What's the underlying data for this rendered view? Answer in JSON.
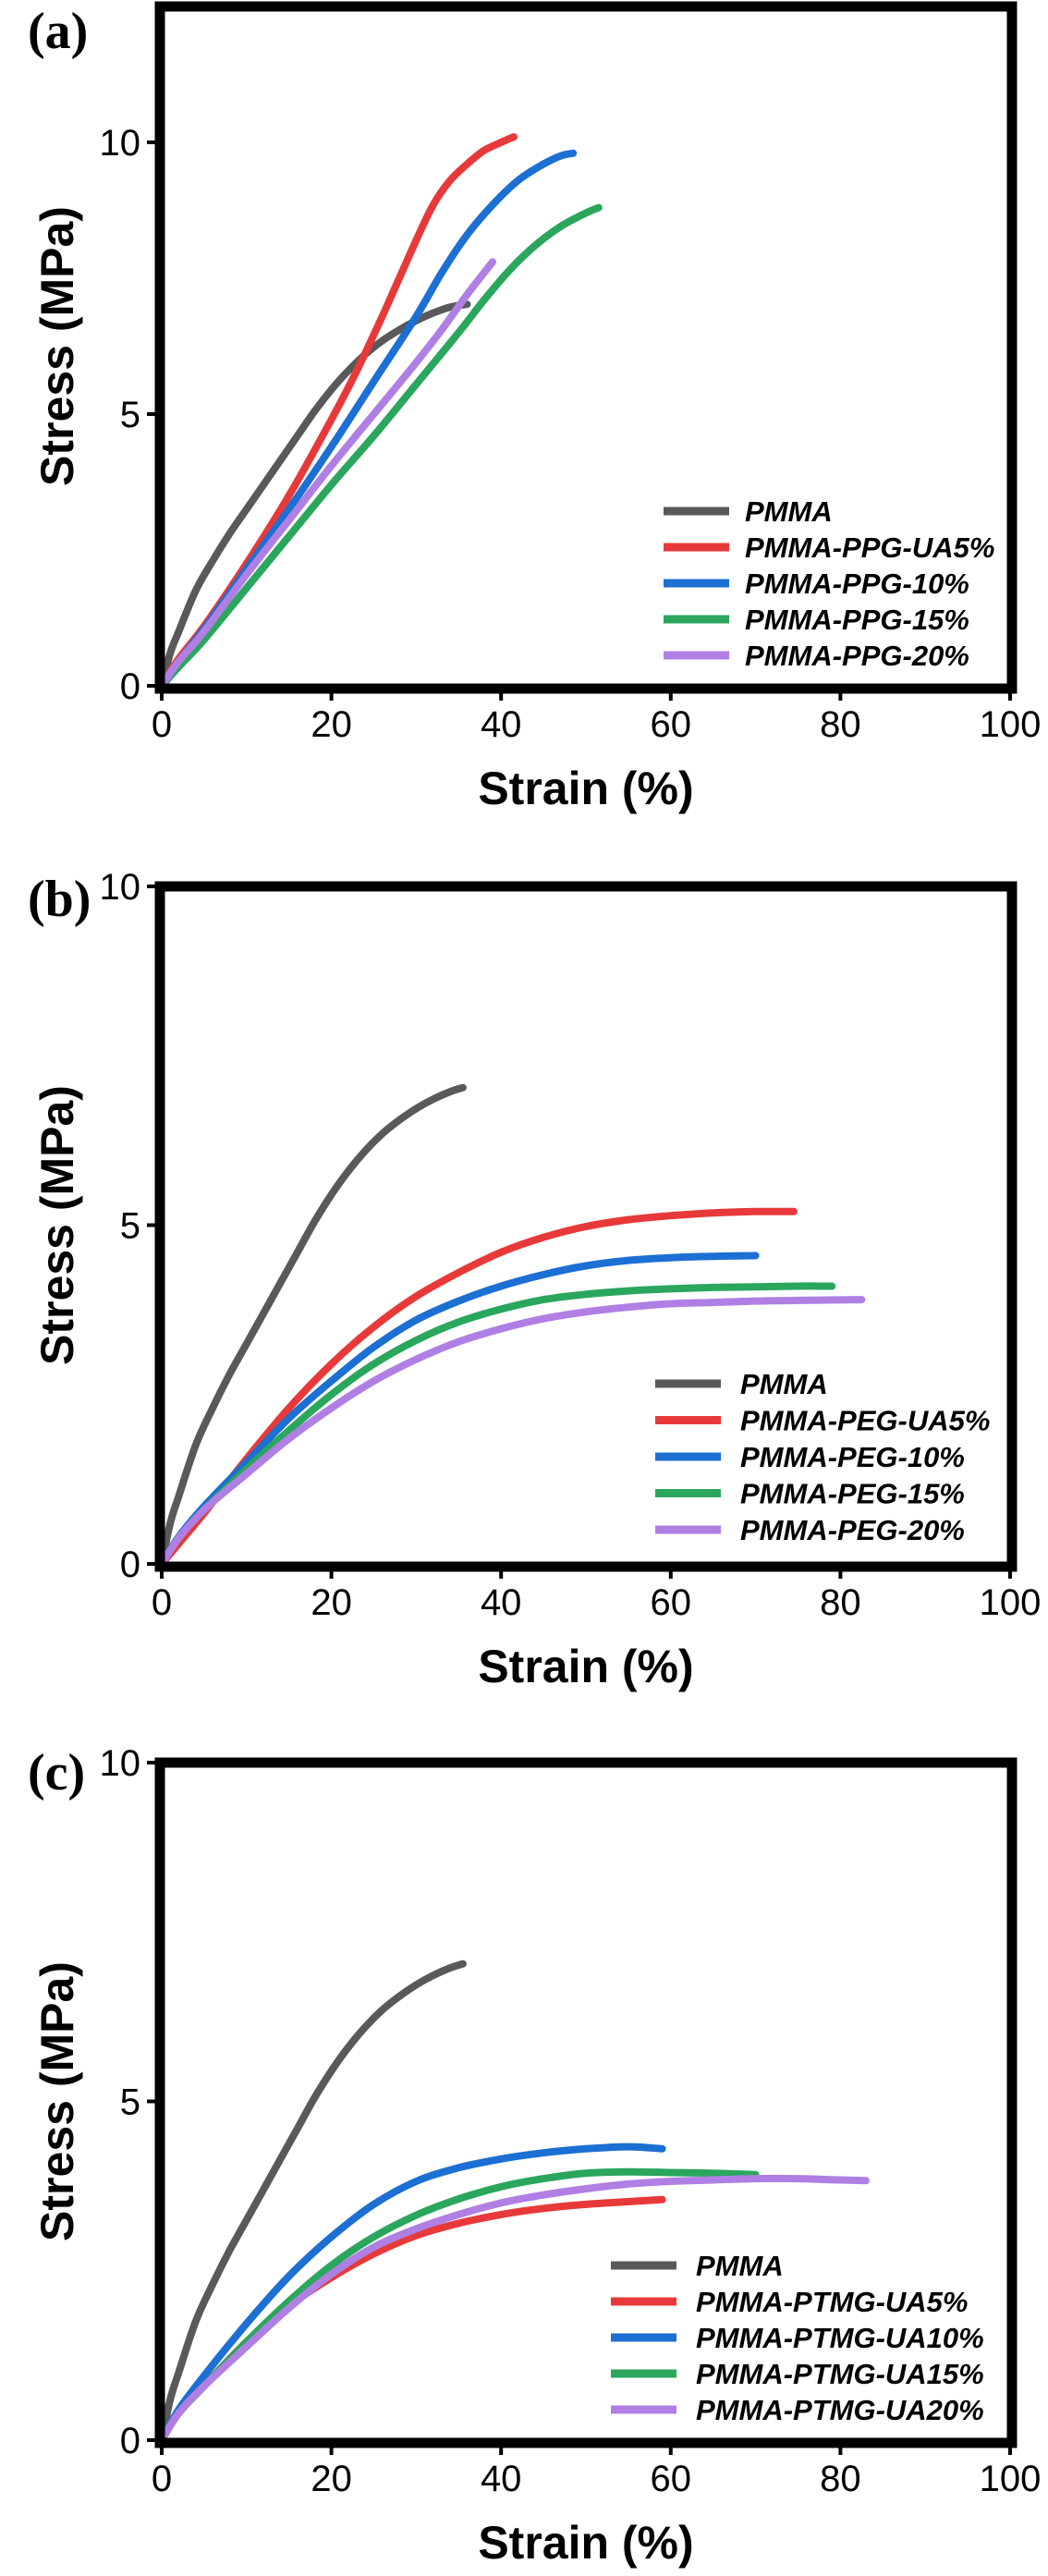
{
  "chart_data": [
    {
      "type": "line",
      "panel_label": "(a)",
      "xlabel": "Strain (%)",
      "ylabel": "Stress (MPa)",
      "xlim": [
        0,
        100
      ],
      "ylim": [
        0,
        12.5
      ],
      "xticks": [
        0,
        20,
        40,
        60,
        80,
        100
      ],
      "yticks": [
        0,
        5,
        10
      ],
      "grid": false,
      "legend": "lower-right",
      "series": [
        {
          "name": "PMMA",
          "color": "#595959",
          "points": [
            [
              0,
              0
            ],
            [
              1,
              0.6
            ],
            [
              2,
              1.0
            ],
            [
              4,
              1.75
            ],
            [
              6,
              2.3
            ],
            [
              8,
              2.8
            ],
            [
              10,
              3.25
            ],
            [
              12,
              3.7
            ],
            [
              14,
              4.15
            ],
            [
              16,
              4.6
            ],
            [
              18,
              5.05
            ],
            [
              20,
              5.45
            ],
            [
              22,
              5.8
            ],
            [
              24,
              6.1
            ],
            [
              26,
              6.35
            ],
            [
              28,
              6.55
            ],
            [
              30,
              6.72
            ],
            [
              32,
              6.86
            ],
            [
              34,
              6.97
            ],
            [
              36,
              7.02
            ]
          ]
        },
        {
          "name": "PMMA-PPG-UA5%",
          "color": "#e8393a",
          "points": [
            [
              0,
              0
            ],
            [
              2,
              0.5
            ],
            [
              5,
              1.1
            ],
            [
              10,
              2.25
            ],
            [
              15,
              3.5
            ],
            [
              20,
              4.9
            ],
            [
              23,
              5.8
            ],
            [
              26,
              6.8
            ],
            [
              28,
              7.5
            ],
            [
              30,
              8.2
            ],
            [
              32,
              8.85
            ],
            [
              34,
              9.3
            ],
            [
              36,
              9.6
            ],
            [
              38,
              9.85
            ],
            [
              40,
              10.0
            ],
            [
              41.5,
              10.1
            ]
          ]
        },
        {
          "name": "PMMA-PPG-10%",
          "color": "#1c6fd3",
          "points": [
            [
              0,
              0
            ],
            [
              2,
              0.45
            ],
            [
              5,
              1.05
            ],
            [
              10,
              2.15
            ],
            [
              15,
              3.25
            ],
            [
              20,
              4.4
            ],
            [
              25,
              5.6
            ],
            [
              30,
              6.8
            ],
            [
              33,
              7.6
            ],
            [
              36,
              8.3
            ],
            [
              39,
              8.85
            ],
            [
              42,
              9.3
            ],
            [
              45,
              9.6
            ],
            [
              47,
              9.75
            ],
            [
              48.5,
              9.8
            ]
          ]
        },
        {
          "name": "PMMA-PPG-15%",
          "color": "#2aa65d",
          "points": [
            [
              0,
              0
            ],
            [
              2,
              0.35
            ],
            [
              5,
              0.85
            ],
            [
              10,
              1.8
            ],
            [
              15,
              2.75
            ],
            [
              20,
              3.7
            ],
            [
              25,
              4.6
            ],
            [
              30,
              5.55
            ],
            [
              35,
              6.5
            ],
            [
              38,
              7.1
            ],
            [
              41,
              7.65
            ],
            [
              44,
              8.1
            ],
            [
              47,
              8.45
            ],
            [
              50,
              8.7
            ],
            [
              51.5,
              8.8
            ]
          ]
        },
        {
          "name": "PMMA-PPG-20%",
          "color": "#b07fe3",
          "points": [
            [
              0,
              0
            ],
            [
              2,
              0.45
            ],
            [
              5,
              1.0
            ],
            [
              10,
              2.05
            ],
            [
              15,
              3.05
            ],
            [
              20,
              4.05
            ],
            [
              25,
              5.0
            ],
            [
              30,
              5.95
            ],
            [
              33,
              6.55
            ],
            [
              36,
              7.2
            ],
            [
              38,
              7.6
            ],
            [
              39,
              7.8
            ]
          ]
        }
      ]
    },
    {
      "type": "line",
      "panel_label": "(b)",
      "xlabel": "Strain (%)",
      "ylabel": "Stress (MPa)",
      "xlim": [
        0,
        100
      ],
      "ylim": [
        0,
        10
      ],
      "xticks": [
        0,
        20,
        40,
        60,
        80,
        100
      ],
      "yticks": [
        0,
        5,
        10
      ],
      "grid": false,
      "legend": "lower-right",
      "series": [
        {
          "name": "PMMA",
          "color": "#595959",
          "points": [
            [
              0,
              0
            ],
            [
              1,
              0.6
            ],
            [
              2,
              1.0
            ],
            [
              4,
              1.75
            ],
            [
              6,
              2.3
            ],
            [
              8,
              2.8
            ],
            [
              10,
              3.25
            ],
            [
              12,
              3.7
            ],
            [
              14,
              4.15
            ],
            [
              16,
              4.6
            ],
            [
              18,
              5.05
            ],
            [
              20,
              5.45
            ],
            [
              22,
              5.8
            ],
            [
              24,
              6.1
            ],
            [
              26,
              6.35
            ],
            [
              28,
              6.55
            ],
            [
              30,
              6.72
            ],
            [
              32,
              6.86
            ],
            [
              34,
              6.97
            ],
            [
              35.5,
              7.03
            ]
          ]
        },
        {
          "name": "PMMA-PEG-UA5%",
          "color": "#e8393a",
          "points": [
            [
              0,
              0
            ],
            [
              2,
              0.3
            ],
            [
              5,
              0.75
            ],
            [
              10,
              1.55
            ],
            [
              15,
              2.3
            ],
            [
              20,
              2.95
            ],
            [
              25,
              3.5
            ],
            [
              30,
              3.95
            ],
            [
              35,
              4.3
            ],
            [
              40,
              4.6
            ],
            [
              45,
              4.82
            ],
            [
              50,
              4.98
            ],
            [
              55,
              5.08
            ],
            [
              60,
              5.14
            ],
            [
              65,
              5.18
            ],
            [
              70,
              5.2
            ],
            [
              74.5,
              5.2
            ]
          ]
        },
        {
          "name": "PMMA-PEG-10%",
          "color": "#1c6fd3",
          "points": [
            [
              0,
              0
            ],
            [
              2,
              0.4
            ],
            [
              5,
              0.85
            ],
            [
              10,
              1.5
            ],
            [
              15,
              2.15
            ],
            [
              20,
              2.7
            ],
            [
              25,
              3.2
            ],
            [
              30,
              3.6
            ],
            [
              35,
              3.88
            ],
            [
              40,
              4.1
            ],
            [
              45,
              4.27
            ],
            [
              50,
              4.4
            ],
            [
              55,
              4.48
            ],
            [
              60,
              4.52
            ],
            [
              65,
              4.54
            ],
            [
              70,
              4.55
            ]
          ]
        },
        {
          "name": "PMMA-PEG-15%",
          "color": "#2aa65d",
          "points": [
            [
              0,
              0
            ],
            [
              2,
              0.38
            ],
            [
              5,
              0.8
            ],
            [
              10,
              1.4
            ],
            [
              15,
              1.97
            ],
            [
              20,
              2.5
            ],
            [
              25,
              2.95
            ],
            [
              30,
              3.3
            ],
            [
              35,
              3.57
            ],
            [
              40,
              3.76
            ],
            [
              45,
              3.9
            ],
            [
              50,
              3.98
            ],
            [
              55,
              4.03
            ],
            [
              60,
              4.06
            ],
            [
              65,
              4.08
            ],
            [
              70,
              4.09
            ],
            [
              75,
              4.1
            ],
            [
              79,
              4.1
            ]
          ]
        },
        {
          "name": "PMMA-PEG-20%",
          "color": "#b07fe3",
          "points": [
            [
              0,
              0
            ],
            [
              2,
              0.38
            ],
            [
              5,
              0.8
            ],
            [
              10,
              1.33
            ],
            [
              15,
              1.85
            ],
            [
              20,
              2.3
            ],
            [
              25,
              2.7
            ],
            [
              30,
              3.02
            ],
            [
              35,
              3.28
            ],
            [
              40,
              3.47
            ],
            [
              45,
              3.62
            ],
            [
              50,
              3.72
            ],
            [
              55,
              3.79
            ],
            [
              60,
              3.84
            ],
            [
              65,
              3.86
            ],
            [
              70,
              3.88
            ],
            [
              75,
              3.89
            ],
            [
              82.5,
              3.9
            ]
          ]
        }
      ]
    },
    {
      "type": "line",
      "panel_label": "(c)",
      "xlabel": "Strain (%)",
      "ylabel": "Stress (MPa)",
      "xlim": [
        0,
        100
      ],
      "ylim": [
        0,
        10
      ],
      "xticks": [
        0,
        20,
        40,
        60,
        80,
        100
      ],
      "yticks": [
        0,
        5,
        10
      ],
      "grid": false,
      "legend": "lower-right",
      "series": [
        {
          "name": "PMMA",
          "color": "#595959",
          "points": [
            [
              0,
              0
            ],
            [
              1,
              0.6
            ],
            [
              2,
              1.0
            ],
            [
              4,
              1.75
            ],
            [
              6,
              2.3
            ],
            [
              8,
              2.8
            ],
            [
              10,
              3.25
            ],
            [
              12,
              3.7
            ],
            [
              14,
              4.15
            ],
            [
              16,
              4.6
            ],
            [
              18,
              5.05
            ],
            [
              20,
              5.45
            ],
            [
              22,
              5.8
            ],
            [
              24,
              6.1
            ],
            [
              26,
              6.35
            ],
            [
              28,
              6.55
            ],
            [
              30,
              6.72
            ],
            [
              32,
              6.86
            ],
            [
              34,
              6.97
            ],
            [
              35.5,
              7.03
            ]
          ]
        },
        {
          "name": "PMMA-PTMG-UA5%",
          "color": "#e8393a",
          "points": [
            [
              0,
              0
            ],
            [
              2,
              0.4
            ],
            [
              5,
              0.8
            ],
            [
              10,
              1.45
            ],
            [
              15,
              1.98
            ],
            [
              20,
              2.4
            ],
            [
              25,
              2.75
            ],
            [
              30,
              3.02
            ],
            [
              35,
              3.2
            ],
            [
              40,
              3.33
            ],
            [
              45,
              3.42
            ],
            [
              50,
              3.48
            ],
            [
              55,
              3.52
            ],
            [
              59,
              3.55
            ]
          ]
        },
        {
          "name": "PMMA-PTMG-UA10%",
          "color": "#1c6fd3",
          "points": [
            [
              0,
              0
            ],
            [
              2,
              0.45
            ],
            [
              5,
              0.95
            ],
            [
              10,
              1.72
            ],
            [
              15,
              2.42
            ],
            [
              20,
              3.0
            ],
            [
              25,
              3.48
            ],
            [
              30,
              3.82
            ],
            [
              35,
              4.02
            ],
            [
              40,
              4.15
            ],
            [
              45,
              4.24
            ],
            [
              50,
              4.3
            ],
            [
              55,
              4.33
            ],
            [
              59,
              4.3
            ]
          ]
        },
        {
          "name": "PMMA-PTMG-UA15%",
          "color": "#2aa65d",
          "points": [
            [
              0,
              0
            ],
            [
              2,
              0.4
            ],
            [
              5,
              0.8
            ],
            [
              10,
              1.45
            ],
            [
              15,
              2.05
            ],
            [
              20,
              2.58
            ],
            [
              25,
              3.0
            ],
            [
              30,
              3.32
            ],
            [
              35,
              3.56
            ],
            [
              40,
              3.74
            ],
            [
              45,
              3.86
            ],
            [
              50,
              3.94
            ],
            [
              55,
              3.96
            ],
            [
              60,
              3.95
            ],
            [
              65,
              3.94
            ],
            [
              70,
              3.92
            ]
          ]
        },
        {
          "name": "PMMA-PTMG-UA20%",
          "color": "#b07fe3",
          "points": [
            [
              0,
              0
            ],
            [
              2,
              0.4
            ],
            [
              5,
              0.8
            ],
            [
              10,
              1.38
            ],
            [
              15,
              1.95
            ],
            [
              20,
              2.45
            ],
            [
              25,
              2.85
            ],
            [
              30,
              3.12
            ],
            [
              35,
              3.33
            ],
            [
              40,
              3.5
            ],
            [
              45,
              3.62
            ],
            [
              50,
              3.71
            ],
            [
              55,
              3.78
            ],
            [
              60,
              3.82
            ],
            [
              65,
              3.84
            ],
            [
              70,
              3.86
            ],
            [
              75,
              3.86
            ],
            [
              80,
              3.84
            ],
            [
              83,
              3.83
            ]
          ]
        }
      ]
    }
  ]
}
